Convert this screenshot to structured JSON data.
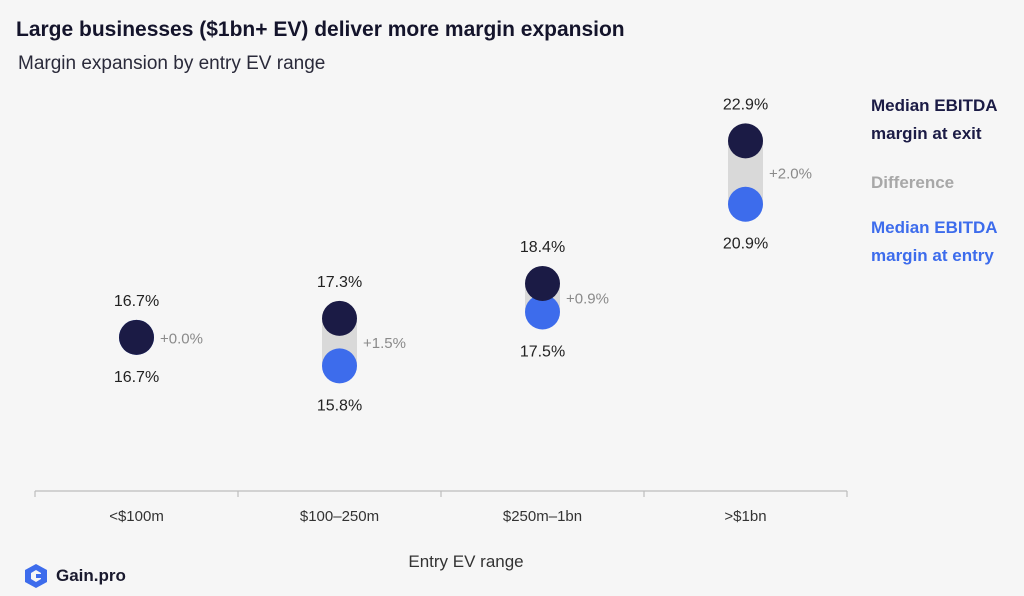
{
  "header": {
    "title": "Large businesses ($1bn+ EV) deliver more margin expansion",
    "subtitle": "Margin expansion by entry EV range"
  },
  "legend": {
    "exit_label": "Median EBITDA margin at exit",
    "difference_label": "Difference",
    "entry_label": "Median EBITDA margin at entry"
  },
  "brand": {
    "name": "Gain.pro",
    "icon": "gain-pro-logo-icon"
  },
  "colors": {
    "exit": "#1b1b45",
    "entry": "#3d6cec",
    "difference": "#d9d9d9",
    "difference_text": "#8a8a8a",
    "axis": "#bdbdbd",
    "background": "#f6f6f6"
  },
  "chart_data": {
    "type": "dumbbell",
    "title": "Large businesses ($1bn+ EV) deliver more margin expansion",
    "subtitle": "Margin expansion by entry EV range",
    "xlabel": "Entry EV range",
    "ylabel": "",
    "categories": [
      "<$100m",
      "$100–250m",
      "$250m–1bn",
      ">$1bn"
    ],
    "series": [
      {
        "name": "Median EBITDA margin at entry",
        "values": [
          16.7,
          15.8,
          17.5,
          20.9
        ],
        "labels": [
          "16.7%",
          "15.8%",
          "17.5%",
          "20.9%"
        ]
      },
      {
        "name": "Median EBITDA margin at exit",
        "values": [
          16.7,
          17.3,
          18.4,
          22.9
        ],
        "labels": [
          "16.7%",
          "17.3%",
          "18.4%",
          "22.9%"
        ]
      }
    ],
    "differences": [
      "+0.0%",
      "+1.5%",
      "+0.9%",
      "+2.0%"
    ],
    "ylim": [
      11,
      24
    ],
    "grid": false,
    "legend_position": "right"
  }
}
